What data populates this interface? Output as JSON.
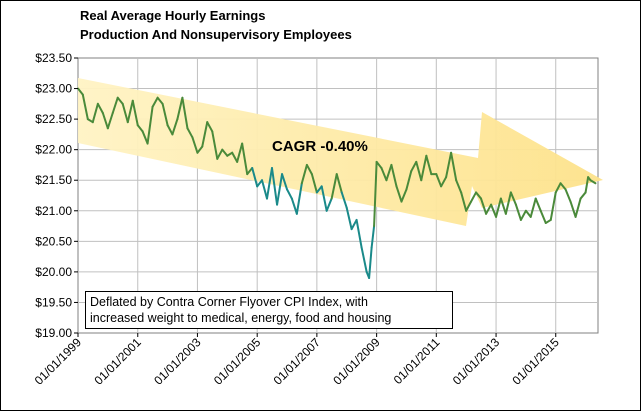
{
  "chart_data": {
    "type": "line",
    "title": "Real Average Hourly Earnings",
    "subtitle": "Production And Nonsupervisory Employees",
    "xlabel": "",
    "ylabel": "",
    "x_tick_labels": [
      "01/01/1999",
      "01/01/2001",
      "01/01/2003",
      "01/01/2005",
      "01/01/2007",
      "01/01/2009",
      "01/01/2011",
      "01/01/2013",
      "01/01/2015"
    ],
    "y_tick_labels": [
      "$19.00",
      "$19.50",
      "$20.00",
      "$20.50",
      "$21.00",
      "$21.50",
      "$22.00",
      "$22.50",
      "$23.00",
      "$23.50"
    ],
    "xlim": [
      "1999-01-01",
      "2016-06-01"
    ],
    "ylim": [
      19.0,
      23.5
    ],
    "grid": true,
    "legend": "none",
    "annotation": "CAGR -0.40%",
    "note_lines": [
      "Deflated by Contra Corner Flyover CPI Index, with",
      "increased weight to medical, energy, food and housing"
    ],
    "colors": {
      "line_above_trend": "#4a8a3a",
      "line_below_trend": "#1a8a8a",
      "trend_arrow": "#ffe8a0",
      "grid": "#c0c0c0"
    },
    "series": [
      {
        "values_by_date": [
          [
            "1999-01-01",
            23.0
          ],
          [
            "1999-03-01",
            22.9
          ],
          [
            "1999-05-01",
            22.5
          ],
          [
            "1999-07-01",
            22.45
          ],
          [
            "1999-09-01",
            22.75
          ],
          [
            "1999-11-01",
            22.6
          ],
          [
            "2000-01-01",
            22.35
          ],
          [
            "2000-03-01",
            22.6
          ],
          [
            "2000-05-01",
            22.85
          ],
          [
            "2000-07-01",
            22.75
          ],
          [
            "2000-09-01",
            22.45
          ],
          [
            "2000-11-01",
            22.8
          ],
          [
            "2001-01-01",
            22.4
          ],
          [
            "2001-03-01",
            22.3
          ],
          [
            "2001-05-01",
            22.1
          ],
          [
            "2001-07-01",
            22.7
          ],
          [
            "2001-09-01",
            22.85
          ],
          [
            "2001-11-01",
            22.75
          ],
          [
            "2002-01-01",
            22.4
          ],
          [
            "2002-03-01",
            22.25
          ],
          [
            "2002-05-01",
            22.5
          ],
          [
            "2002-07-01",
            22.85
          ],
          [
            "2002-09-01",
            22.35
          ],
          [
            "2002-11-01",
            22.2
          ],
          [
            "2003-01-01",
            21.95
          ],
          [
            "2003-03-01",
            22.05
          ],
          [
            "2003-05-01",
            22.45
          ],
          [
            "2003-07-01",
            22.3
          ],
          [
            "2003-09-01",
            21.85
          ],
          [
            "2003-11-01",
            22.0
          ],
          [
            "2004-01-01",
            21.9
          ],
          [
            "2004-03-01",
            21.95
          ],
          [
            "2004-05-01",
            21.8
          ],
          [
            "2004-07-01",
            22.1
          ],
          [
            "2004-09-01",
            21.6
          ],
          [
            "2004-11-01",
            21.7
          ],
          [
            "2005-01-01",
            21.4
          ],
          [
            "2005-03-01",
            21.5
          ],
          [
            "2005-05-01",
            21.2
          ],
          [
            "2005-07-01",
            21.7
          ],
          [
            "2005-09-01",
            21.1
          ],
          [
            "2005-11-01",
            21.6
          ],
          [
            "2006-01-01",
            21.35
          ],
          [
            "2006-03-01",
            21.2
          ],
          [
            "2006-05-01",
            20.95
          ],
          [
            "2006-07-01",
            21.45
          ],
          [
            "2006-09-01",
            21.75
          ],
          [
            "2006-11-01",
            21.6
          ],
          [
            "2007-01-01",
            21.3
          ],
          [
            "2007-03-01",
            21.4
          ],
          [
            "2007-05-01",
            21.0
          ],
          [
            "2007-07-01",
            21.2
          ],
          [
            "2007-09-01",
            21.6
          ],
          [
            "2007-11-01",
            21.3
          ],
          [
            "2008-01-01",
            21.05
          ],
          [
            "2008-03-01",
            20.7
          ],
          [
            "2008-05-01",
            20.85
          ],
          [
            "2008-07-01",
            20.4
          ],
          [
            "2008-09-01",
            20.0
          ],
          [
            "2008-10-01",
            19.9
          ],
          [
            "2008-11-01",
            20.4
          ],
          [
            "2008-12-01",
            20.75
          ],
          [
            "2009-01-01",
            21.8
          ],
          [
            "2009-03-01",
            21.7
          ],
          [
            "2009-05-01",
            21.5
          ],
          [
            "2009-07-01",
            21.75
          ],
          [
            "2009-09-01",
            21.4
          ],
          [
            "2009-11-01",
            21.15
          ],
          [
            "2010-01-01",
            21.35
          ],
          [
            "2010-03-01",
            21.65
          ],
          [
            "2010-05-01",
            21.8
          ],
          [
            "2010-07-01",
            21.5
          ],
          [
            "2010-09-01",
            21.9
          ],
          [
            "2010-11-01",
            21.6
          ],
          [
            "2011-01-01",
            21.6
          ],
          [
            "2011-03-01",
            21.4
          ],
          [
            "2011-05-01",
            21.55
          ],
          [
            "2011-07-01",
            21.95
          ],
          [
            "2011-09-01",
            21.5
          ],
          [
            "2011-11-01",
            21.3
          ],
          [
            "2012-01-01",
            21.0
          ],
          [
            "2012-03-01",
            21.15
          ],
          [
            "2012-05-01",
            21.3
          ],
          [
            "2012-07-01",
            21.2
          ],
          [
            "2012-09-01",
            20.95
          ],
          [
            "2012-11-01",
            21.1
          ],
          [
            "2013-01-01",
            20.9
          ],
          [
            "2013-03-01",
            21.2
          ],
          [
            "2013-05-01",
            20.95
          ],
          [
            "2013-07-01",
            21.3
          ],
          [
            "2013-09-01",
            21.1
          ],
          [
            "2013-11-01",
            20.85
          ],
          [
            "2014-01-01",
            21.0
          ],
          [
            "2014-03-01",
            20.9
          ],
          [
            "2014-05-01",
            21.2
          ],
          [
            "2014-07-01",
            21.0
          ],
          [
            "2014-09-01",
            20.8
          ],
          [
            "2014-11-01",
            20.85
          ],
          [
            "2015-01-01",
            21.3
          ],
          [
            "2015-03-01",
            21.45
          ],
          [
            "2015-05-01",
            21.35
          ],
          [
            "2015-07-01",
            21.15
          ],
          [
            "2015-09-01",
            20.9
          ],
          [
            "2015-11-01",
            21.2
          ],
          [
            "2016-01-01",
            21.3
          ],
          [
            "2016-02-01",
            21.55
          ],
          [
            "2016-03-01",
            21.5
          ],
          [
            "2016-05-01",
            21.45
          ]
        ]
      }
    ]
  }
}
